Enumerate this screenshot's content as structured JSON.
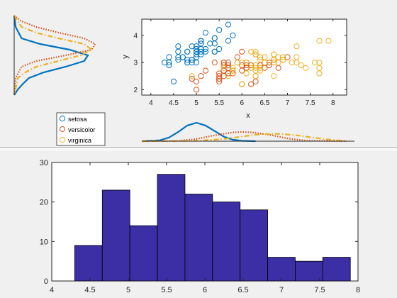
{
  "chart_data": [
    {
      "type": "scatter",
      "xlabel": "x",
      "ylabel": "y",
      "xlim": [
        3.8,
        8.3
      ],
      "ylim": [
        1.8,
        4.6
      ],
      "xticks": [
        "4",
        "4.5",
        "5",
        "5.5",
        "6",
        "6.5",
        "7",
        "7.5",
        "8"
      ],
      "yticks": [
        "2",
        "3",
        "4"
      ],
      "marker": "open-circle",
      "grid": false,
      "legend_placement": "bottom-left (outside axes)",
      "series": [
        {
          "name": "setosa",
          "color": "#0072bd",
          "points": [
            [
              5.1,
              3.5
            ],
            [
              4.9,
              3.0
            ],
            [
              4.7,
              3.2
            ],
            [
              4.6,
              3.1
            ],
            [
              5.0,
              3.6
            ],
            [
              5.4,
              3.9
            ],
            [
              4.6,
              3.4
            ],
            [
              5.0,
              3.4
            ],
            [
              4.4,
              2.9
            ],
            [
              4.9,
              3.1
            ],
            [
              5.4,
              3.7
            ],
            [
              4.8,
              3.4
            ],
            [
              4.8,
              3.0
            ],
            [
              4.3,
              3.0
            ],
            [
              5.8,
              4.0
            ],
            [
              5.7,
              4.4
            ],
            [
              5.4,
              3.9
            ],
            [
              5.1,
              3.5
            ],
            [
              5.7,
              3.8
            ],
            [
              5.1,
              3.8
            ],
            [
              5.4,
              3.4
            ],
            [
              5.1,
              3.7
            ],
            [
              4.6,
              3.6
            ],
            [
              5.1,
              3.3
            ],
            [
              4.8,
              3.4
            ],
            [
              5.0,
              3.0
            ],
            [
              5.0,
              3.4
            ],
            [
              5.2,
              3.5
            ],
            [
              5.2,
              3.4
            ],
            [
              4.7,
              3.2
            ],
            [
              4.8,
              3.1
            ],
            [
              5.4,
              3.4
            ],
            [
              5.2,
              4.1
            ],
            [
              5.5,
              4.2
            ],
            [
              4.9,
              3.1
            ],
            [
              5.0,
              3.2
            ],
            [
              5.5,
              3.5
            ],
            [
              4.9,
              3.6
            ],
            [
              4.4,
              3.0
            ],
            [
              5.1,
              3.4
            ],
            [
              5.0,
              3.5
            ],
            [
              4.5,
              2.3
            ],
            [
              4.4,
              3.2
            ],
            [
              5.0,
              3.5
            ],
            [
              5.1,
              3.8
            ],
            [
              4.8,
              3.0
            ],
            [
              5.1,
              3.8
            ],
            [
              4.6,
              3.2
            ],
            [
              5.3,
              3.7
            ],
            [
              5.0,
              3.3
            ]
          ]
        },
        {
          "name": "versicolor",
          "color": "#d95319",
          "points": [
            [
              7.0,
              3.2
            ],
            [
              6.4,
              3.2
            ],
            [
              6.9,
              3.1
            ],
            [
              5.5,
              2.3
            ],
            [
              6.5,
              2.8
            ],
            [
              5.7,
              2.8
            ],
            [
              6.3,
              3.3
            ],
            [
              4.9,
              2.4
            ],
            [
              6.6,
              2.9
            ],
            [
              5.2,
              2.7
            ],
            [
              5.0,
              2.0
            ],
            [
              5.9,
              3.0
            ],
            [
              6.0,
              2.2
            ],
            [
              6.1,
              2.9
            ],
            [
              5.6,
              2.9
            ],
            [
              6.7,
              3.1
            ],
            [
              5.6,
              3.0
            ],
            [
              5.8,
              2.7
            ],
            [
              6.2,
              2.2
            ],
            [
              5.6,
              2.5
            ],
            [
              5.9,
              3.2
            ],
            [
              6.1,
              2.8
            ],
            [
              6.3,
              2.5
            ],
            [
              6.1,
              2.8
            ],
            [
              6.4,
              2.9
            ],
            [
              6.6,
              3.0
            ],
            [
              6.8,
              2.8
            ],
            [
              6.7,
              3.0
            ],
            [
              6.0,
              2.9
            ],
            [
              5.7,
              2.6
            ],
            [
              5.5,
              2.4
            ],
            [
              5.5,
              2.4
            ],
            [
              5.8,
              2.7
            ],
            [
              6.0,
              2.7
            ],
            [
              5.4,
              3.0
            ],
            [
              6.0,
              3.4
            ],
            [
              6.7,
              3.1
            ],
            [
              6.3,
              2.3
            ],
            [
              5.6,
              3.0
            ],
            [
              5.5,
              2.5
            ],
            [
              5.5,
              2.6
            ],
            [
              6.1,
              3.0
            ],
            [
              5.8,
              2.6
            ],
            [
              5.0,
              2.3
            ],
            [
              5.6,
              2.7
            ],
            [
              5.7,
              3.0
            ],
            [
              5.7,
              2.9
            ],
            [
              6.2,
              2.9
            ],
            [
              5.1,
              2.5
            ],
            [
              5.7,
              2.8
            ]
          ]
        },
        {
          "name": "virginica",
          "color": "#edb120",
          "points": [
            [
              6.3,
              3.3
            ],
            [
              5.8,
              2.7
            ],
            [
              7.1,
              3.0
            ],
            [
              6.3,
              2.9
            ],
            [
              6.5,
              3.0
            ],
            [
              7.6,
              3.0
            ],
            [
              4.9,
              2.5
            ],
            [
              7.3,
              2.9
            ],
            [
              6.7,
              2.5
            ],
            [
              7.2,
              3.6
            ],
            [
              6.5,
              3.2
            ],
            [
              6.4,
              2.7
            ],
            [
              6.8,
              3.0
            ],
            [
              5.7,
              2.5
            ],
            [
              5.8,
              2.8
            ],
            [
              6.4,
              3.2
            ],
            [
              6.5,
              3.0
            ],
            [
              7.7,
              3.8
            ],
            [
              7.7,
              2.6
            ],
            [
              6.0,
              2.2
            ],
            [
              6.9,
              3.2
            ],
            [
              5.6,
              2.8
            ],
            [
              7.7,
              2.8
            ],
            [
              6.3,
              2.7
            ],
            [
              6.7,
              3.3
            ],
            [
              7.2,
              3.2
            ],
            [
              6.2,
              2.8
            ],
            [
              6.1,
              3.0
            ],
            [
              6.4,
              2.8
            ],
            [
              7.2,
              3.0
            ],
            [
              7.4,
              2.8
            ],
            [
              7.9,
              3.8
            ],
            [
              6.4,
              2.8
            ],
            [
              6.3,
              2.8
            ],
            [
              6.1,
              2.6
            ],
            [
              7.7,
              3.0
            ],
            [
              6.3,
              3.4
            ],
            [
              6.4,
              3.1
            ],
            [
              6.0,
              3.0
            ],
            [
              6.9,
              3.1
            ],
            [
              6.7,
              3.1
            ],
            [
              6.9,
              3.1
            ],
            [
              5.8,
              2.7
            ],
            [
              6.8,
              3.2
            ],
            [
              6.7,
              3.3
            ],
            [
              6.7,
              3.0
            ],
            [
              6.3,
              2.5
            ],
            [
              6.5,
              3.0
            ],
            [
              6.2,
              3.4
            ],
            [
              5.9,
              3.0
            ]
          ]
        }
      ]
    },
    {
      "type": "line",
      "role": "marginal density of y (left of scatter, rotated)",
      "series": [
        {
          "name": "setosa",
          "color": "#0072bd",
          "style": "solid",
          "y": [
            1.8,
            2.2,
            2.6,
            2.8,
            3.0,
            3.2,
            3.4,
            3.6,
            3.8,
            4.0,
            4.2,
            4.4,
            4.6
          ],
          "density": [
            0.0,
            0.02,
            0.1,
            0.35,
            0.75,
            1.0,
            0.95,
            0.7,
            0.4,
            0.2,
            0.12,
            0.05,
            0.0
          ]
        },
        {
          "name": "versicolor",
          "color": "#d95319",
          "style": "dotted",
          "y": [
            1.8,
            2.0,
            2.2,
            2.4,
            2.6,
            2.8,
            3.0,
            3.2,
            3.4,
            3.6,
            4.0,
            4.6
          ],
          "density": [
            0.0,
            0.1,
            0.3,
            0.6,
            0.95,
            1.1,
            1.05,
            0.7,
            0.3,
            0.1,
            0.02,
            0.0
          ]
        },
        {
          "name": "virginica",
          "color": "#edb120",
          "style": "dash-dot",
          "y": [
            1.8,
            2.2,
            2.4,
            2.6,
            2.8,
            3.0,
            3.2,
            3.4,
            3.6,
            3.8,
            4.0,
            4.6
          ],
          "density": [
            0.0,
            0.1,
            0.3,
            0.6,
            0.95,
            1.05,
            0.9,
            0.6,
            0.3,
            0.15,
            0.05,
            0.0
          ]
        }
      ]
    },
    {
      "type": "line",
      "role": "marginal density of x (below scatter)",
      "series": [
        {
          "name": "setosa",
          "color": "#0072bd",
          "style": "solid",
          "x": [
            3.8,
            4.2,
            4.4,
            4.6,
            4.8,
            5.0,
            5.2,
            5.4,
            5.6,
            5.8,
            6.0,
            6.3
          ],
          "density": [
            0.0,
            0.05,
            0.2,
            0.5,
            0.85,
            1.0,
            0.85,
            0.55,
            0.25,
            0.08,
            0.02,
            0.0
          ]
        },
        {
          "name": "versicolor",
          "color": "#d95319",
          "style": "dotted",
          "x": [
            3.8,
            4.6,
            5.0,
            5.4,
            5.8,
            6.0,
            6.2,
            6.6,
            7.0,
            7.4,
            8.3
          ],
          "density": [
            0.0,
            0.02,
            0.12,
            0.32,
            0.48,
            0.5,
            0.48,
            0.35,
            0.15,
            0.03,
            0.0
          ]
        },
        {
          "name": "virginica",
          "color": "#edb120",
          "style": "dash-dot",
          "x": [
            3.8,
            5.0,
            5.6,
            6.0,
            6.4,
            6.8,
            7.2,
            7.6,
            8.0,
            8.3
          ],
          "density": [
            0.0,
            0.02,
            0.12,
            0.25,
            0.38,
            0.4,
            0.32,
            0.18,
            0.06,
            0.02
          ]
        }
      ]
    },
    {
      "type": "bar",
      "role": "histogram",
      "xlim": [
        4,
        8
      ],
      "ylim": [
        0,
        30
      ],
      "xticks": [
        "4",
        "4.5",
        "5",
        "5.5",
        "6",
        "6.5",
        "7",
        "7.5",
        "8"
      ],
      "yticks": [
        "0",
        "10",
        "20",
        "30"
      ],
      "bin_edges": [
        4.3,
        4.66,
        5.02,
        5.38,
        5.74,
        6.1,
        6.46,
        6.82,
        7.18,
        7.54,
        7.9
      ],
      "values": [
        9,
        23,
        14,
        27,
        22,
        20,
        18,
        6,
        5,
        6
      ],
      "color": "#3c2ea4",
      "edgecolor": "#000000"
    }
  ]
}
